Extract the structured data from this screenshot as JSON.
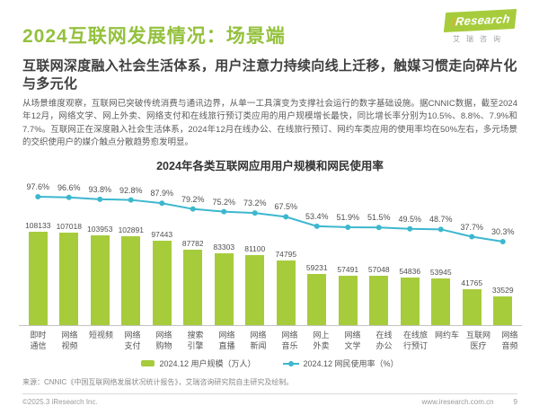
{
  "colors": {
    "title_green": "#94C13D",
    "bar_green": "#A6CC3C",
    "line_cyan": "#3CB7CE"
  },
  "header": {
    "title": "2024互联网发展情况：场景端",
    "logo_text": "Research",
    "logo_i": "i",
    "logo_cn": "艾瑞咨询",
    "subtitle": "互联网深度融入社会生活体系，用户注意力持续向线上迁移，触媒习惯走向碎片化与多元化",
    "body_text": "从场景维度观察，互联网已突破传统消费与通讯边界，从单一工具演变为支撑社会运行的数字基础设施。据CNNIC数据，截至2024年12月，网络文学、网上外卖、网络支付和在线旅行预订类应用的用户规模增长最快，同比增长率分别为10.5%、8.8%、7.9%和7.7%。互联网正在深度融入社会生活体系，2024年12月在线办公、在线旅行预订、网约车类应用的使用率均在50%左右，多元场景的交织使用户的媒介触点分散趋势愈发明显。"
  },
  "chart_data": {
    "type": "bar",
    "title": "2024年各类互联网应用用户规模和网民使用率",
    "categories": [
      "即时\n通信",
      "网络\n视频",
      "短视频",
      "网络\n支付",
      "网络\n购物",
      "搜索\n引擎",
      "网络\n直播",
      "网络\n新闻",
      "网络\n音乐",
      "网上\n外卖",
      "网络\n文学",
      "在线\n办公",
      "在线旅\n行预订",
      "网约车",
      "互联网\n医疗",
      "网络\n音频"
    ],
    "series": [
      {
        "name": "2024.12 用户规模（万人）",
        "type": "bar",
        "color": "#A6CC3C",
        "values": [
          108133,
          107018,
          103953,
          102891,
          97443,
          87782,
          83303,
          81100,
          74795,
          59231,
          57491,
          57048,
          54836,
          53945,
          41765,
          33529
        ]
      },
      {
        "name": "2024.12 网民使用率（%）",
        "type": "line",
        "color": "#3CB7CE",
        "values": [
          97.6,
          96.6,
          93.8,
          92.8,
          87.9,
          79.2,
          75.2,
          73.2,
          67.5,
          53.4,
          51.9,
          51.5,
          49.5,
          48.7,
          37.7,
          30.3
        ]
      }
    ],
    "legend_position": "bottom",
    "grid": false
  },
  "footer": {
    "source": "来源：CNNIC《中国互联网络发展状况统计报告》，艾瑞咨询研究院自主研究及绘制。",
    "copyright": "©2025.3 iResearch Inc.",
    "website": "www.iresearch.com.cn",
    "page_number": "9"
  }
}
